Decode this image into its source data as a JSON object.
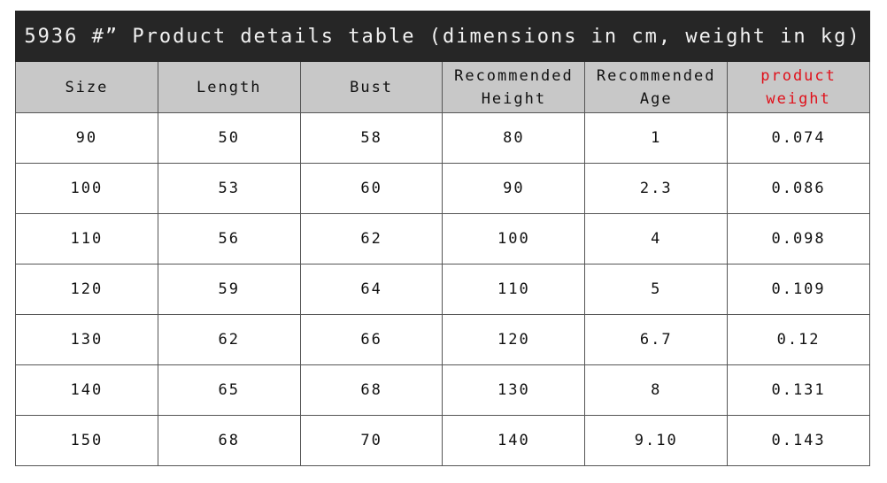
{
  "title": "5936 #” Product details table (dimensions in cm, weight in kg)",
  "table": {
    "header": [
      "Size",
      "Length",
      "Bust",
      "Recommended Height",
      "Recommended Age",
      "product weight"
    ],
    "rows": [
      [
        "90",
        "50",
        "58",
        "80",
        "1",
        "0.074"
      ],
      [
        "100",
        "53",
        "60",
        "90",
        "2.3",
        "0.086"
      ],
      [
        "110",
        "56",
        "62",
        "100",
        "4",
        "0.098"
      ],
      [
        "120",
        "59",
        "64",
        "110",
        "5",
        "0.109"
      ],
      [
        "130",
        "62",
        "66",
        "120",
        "6.7",
        "0.12"
      ],
      [
        "140",
        "65",
        "68",
        "130",
        "8",
        "0.131"
      ],
      [
        "150",
        "68",
        "70",
        "140",
        "9.10",
        "0.143"
      ]
    ]
  }
}
